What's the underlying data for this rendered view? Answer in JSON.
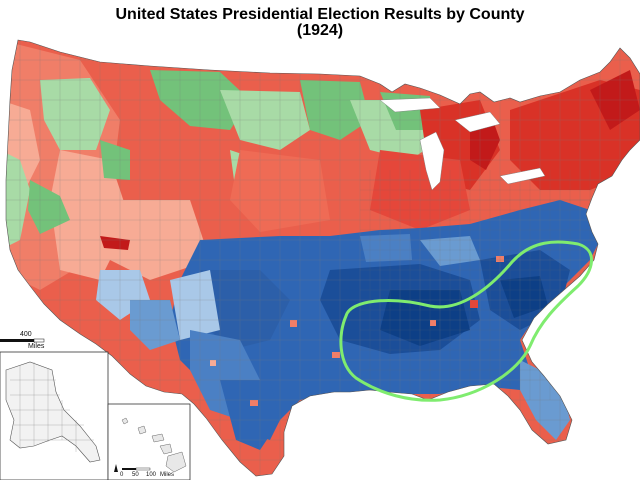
{
  "title": {
    "line1": "United States Presidential Election Results by County",
    "line2": "(1924)"
  },
  "scale": {
    "value": "400",
    "unit": "Miles"
  },
  "hawaii_scale": {
    "tick_0": "0",
    "tick_mid": "50",
    "tick_end": "100",
    "unit": "Miles"
  },
  "colors": {
    "republican_dark": "#c21a1a",
    "republican_mid": "#e5473a",
    "republican_light": "#f07e68",
    "republican_pale": "#f7ab95",
    "democrat_dark": "#0d3f86",
    "democrat_mid": "#2f66b4",
    "democrat_light": "#6a9bd1",
    "democrat_pale": "#a9c8e8",
    "progressive_mid": "#73c27a",
    "progressive_light": "#a8dba6",
    "annotation_outline": "#7fec6f",
    "county_border": "#7a7a7a"
  },
  "annotation": {
    "shape": "green-loop-around-southeast",
    "icon": "highlight-loop"
  }
}
